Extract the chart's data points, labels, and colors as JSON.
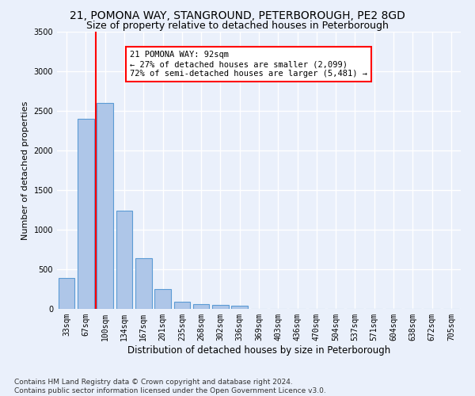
{
  "title1": "21, POMONA WAY, STANGROUND, PETERBOROUGH, PE2 8GD",
  "title2": "Size of property relative to detached houses in Peterborough",
  "xlabel": "Distribution of detached houses by size in Peterborough",
  "ylabel": "Number of detached properties",
  "footnote1": "Contains HM Land Registry data © Crown copyright and database right 2024.",
  "footnote2": "Contains public sector information licensed under the Open Government Licence v3.0.",
  "bar_labels": [
    "33sqm",
    "67sqm",
    "100sqm",
    "134sqm",
    "167sqm",
    "201sqm",
    "235sqm",
    "268sqm",
    "302sqm",
    "336sqm",
    "369sqm",
    "403sqm",
    "436sqm",
    "470sqm",
    "504sqm",
    "537sqm",
    "571sqm",
    "604sqm",
    "638sqm",
    "672sqm",
    "705sqm"
  ],
  "bar_values": [
    390,
    2400,
    2600,
    1240,
    640,
    255,
    95,
    60,
    55,
    40,
    0,
    0,
    0,
    0,
    0,
    0,
    0,
    0,
    0,
    0,
    0
  ],
  "bar_color": "#aec6e8",
  "bar_edge_color": "#5b9bd5",
  "vline_x": 1.5,
  "vline_color": "red",
  "annotation_text": "21 POMONA WAY: 92sqm\n← 27% of detached houses are smaller (2,099)\n72% of semi-detached houses are larger (5,481) →",
  "annotation_box_color": "white",
  "annotation_box_edge_color": "red",
  "ylim": [
    0,
    3500
  ],
  "background_color": "#eaf0fb",
  "grid_color": "white",
  "title1_fontsize": 10,
  "title2_fontsize": 9,
  "xlabel_fontsize": 8.5,
  "ylabel_fontsize": 8,
  "tick_fontsize": 7,
  "annot_fontsize": 7.5,
  "footnote_fontsize": 6.5
}
